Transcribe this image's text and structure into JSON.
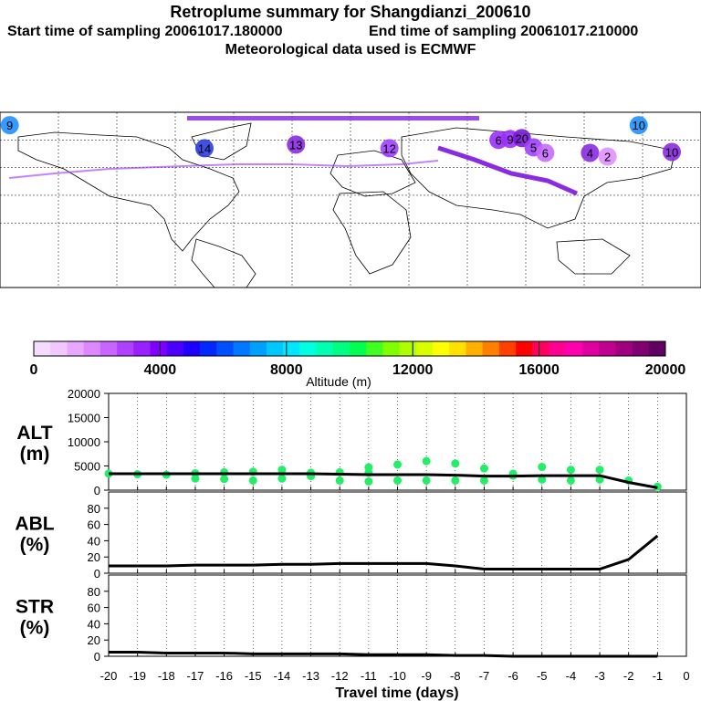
{
  "header": {
    "title": "Retroplume summary for Shangdianzi_200610",
    "start_label": "Start time of sampling 20061017.180000",
    "end_label": "End time of sampling 20061017.210000",
    "met_label": "Meteorological data used is ECMWF"
  },
  "map": {
    "clusters": [
      {
        "label": "9",
        "lon": -175,
        "lat": 76,
        "color": "#1e90ff"
      },
      {
        "label": "10",
        "lon": 148,
        "lat": 76,
        "color": "#1e90ff"
      },
      {
        "label": "6",
        "lon": 76,
        "lat": 60,
        "color": "#9b30ff"
      },
      {
        "label": "9",
        "lon": 82,
        "lat": 61,
        "color": "#9b30ff"
      },
      {
        "label": "20",
        "lon": 88,
        "lat": 62,
        "color": "#7a1bd6"
      },
      {
        "label": "5",
        "lon": 94,
        "lat": 52,
        "color": "#a040ff"
      },
      {
        "label": "14",
        "lon": -75,
        "lat": 51,
        "color": "#2a3de0"
      },
      {
        "label": "13",
        "lon": -28,
        "lat": 55,
        "color": "#8a2be2"
      },
      {
        "label": "12",
        "lon": 20,
        "lat": 51,
        "color": "#a040ff"
      },
      {
        "label": "6",
        "lon": 100,
        "lat": 46,
        "color": "#c66bff"
      },
      {
        "label": "4",
        "lon": 123,
        "lat": 46,
        "color": "#8a2be2"
      },
      {
        "label": "2",
        "lon": 132,
        "lat": 42,
        "color": "#e090ff"
      },
      {
        "label": "10",
        "lon": 165,
        "lat": 47,
        "color": "#8a2be2"
      }
    ]
  },
  "colorbar": {
    "min": 0,
    "max": 20000,
    "tick_labels": [
      "0",
      "4000",
      "8000",
      "12000",
      "16000",
      "20000"
    ],
    "title": "Altitude (m)",
    "colors": [
      "#f5dcff",
      "#f0c8ff",
      "#e8a8ff",
      "#de88ff",
      "#c864ff",
      "#b040ff",
      "#9a20ff",
      "#8000ff",
      "#4b00ff",
      "#1e00ff",
      "#0028ff",
      "#0050ff",
      "#0078ff",
      "#00a0ff",
      "#00c8ff",
      "#00e6ff",
      "#00ffe0",
      "#00ffb0",
      "#00ff80",
      "#00ff50",
      "#40ff20",
      "#80ff00",
      "#b0ff00",
      "#d8ff00",
      "#ffff00",
      "#ffe000",
      "#ffb000",
      "#ff8000",
      "#ff4000",
      "#ff0000",
      "#ff0060",
      "#ff0090",
      "#ff00b0",
      "#e000a0",
      "#c00090",
      "#a00080",
      "#800070",
      "#600060"
    ]
  },
  "chart_data": [
    {
      "type": "line",
      "name": "ALT",
      "ylabel": "ALT (m)",
      "ylim": [
        0,
        20000
      ],
      "y_tick_labels": [
        "0",
        "5000",
        "10000",
        "15000",
        "20000"
      ],
      "x": [
        -20,
        -19,
        -18,
        -17,
        -16,
        -15,
        -14,
        -13,
        -12,
        -11,
        -10,
        -9,
        -8,
        -7,
        -6,
        -5,
        -4,
        -3,
        -2,
        -1
      ],
      "values": [
        3400,
        3400,
        3400,
        3400,
        3400,
        3400,
        3400,
        3400,
        3300,
        3200,
        3200,
        3200,
        3100,
        2900,
        2900,
        3000,
        3000,
        3000,
        1600,
        500
      ],
      "scatter": {
        "x": [
          -20,
          -19,
          -18,
          -17,
          -17,
          -16,
          -16,
          -15,
          -15,
          -14,
          -14,
          -13,
          -13,
          -12,
          -12,
          -11,
          -11,
          -11,
          -10,
          -10,
          -9,
          -9,
          -8,
          -8,
          -7,
          -7,
          -6,
          -6,
          -5,
          -5,
          -4,
          -4,
          -3,
          -3,
          -2,
          -1
        ],
        "y": [
          3400,
          3300,
          3200,
          3500,
          2400,
          3700,
          2300,
          3800,
          2000,
          4200,
          2400,
          3600,
          2900,
          3700,
          2000,
          4700,
          3600,
          1800,
          5300,
          2000,
          6000,
          2000,
          5500,
          2000,
          4500,
          2000,
          3400,
          3000,
          4800,
          2200,
          4200,
          2000,
          4200,
          2200,
          2000,
          700
        ]
      }
    },
    {
      "type": "line",
      "name": "ABL",
      "ylabel": "ABL (%)",
      "ylim": [
        0,
        100
      ],
      "y_tick_labels": [
        "0",
        "20",
        "40",
        "60",
        "80"
      ],
      "x": [
        -20,
        -19,
        -18,
        -17,
        -16,
        -15,
        -14,
        -13,
        -12,
        -11,
        -10,
        -9,
        -8,
        -7,
        -6,
        -5,
        -4,
        -3,
        -2,
        -1
      ],
      "values": [
        9,
        9,
        9,
        10,
        10,
        10,
        11,
        11,
        12,
        12,
        12,
        12,
        9,
        5,
        5,
        5,
        5,
        5,
        17,
        46
      ]
    },
    {
      "type": "line",
      "name": "STR",
      "ylabel": "STR (%)",
      "ylim": [
        0,
        100
      ],
      "y_tick_labels": [
        "0",
        "20",
        "40",
        "60",
        "80"
      ],
      "x": [
        -20,
        -19,
        -18,
        -17,
        -16,
        -15,
        -14,
        -13,
        -12,
        -11,
        -10,
        -9,
        -8,
        -7,
        -6,
        -5,
        -4,
        -3,
        -2,
        -1
      ],
      "values": [
        5,
        5,
        4,
        4,
        4,
        3,
        3,
        3,
        3,
        2,
        2,
        2,
        1,
        1,
        0,
        0,
        0,
        0,
        0,
        0
      ],
      "xlabel": "Travel time (days)",
      "x_tick_labels": [
        "-20",
        "-19",
        "-18",
        "-17",
        "-16",
        "-15",
        "-14",
        "-13",
        "-12",
        "-11",
        "-10",
        "-9",
        "-8",
        "-7",
        "-6",
        "-5",
        "-4",
        "-3",
        "-2",
        "-1",
        "0"
      ]
    }
  ]
}
